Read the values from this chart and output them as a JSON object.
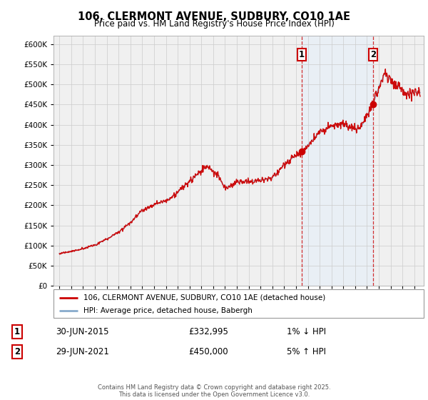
{
  "title_line1": "106, CLERMONT AVENUE, SUDBURY, CO10 1AE",
  "title_line2": "Price paid vs. HM Land Registry's House Price Index (HPI)",
  "legend_line1": "106, CLERMONT AVENUE, SUDBURY, CO10 1AE (detached house)",
  "legend_line2": "HPI: Average price, detached house, Babergh",
  "footer": "Contains HM Land Registry data © Crown copyright and database right 2025.\nThis data is licensed under the Open Government Licence v3.0.",
  "sale1_date": "30-JUN-2015",
  "sale1_price": "£332,995",
  "sale1_hpi": "1% ↓ HPI",
  "sale2_date": "29-JUN-2021",
  "sale2_price": "£450,000",
  "sale2_hpi": "5% ↑ HPI",
  "red_color": "#cc0000",
  "blue_color": "#88aacc",
  "shade_color": "#ddeeff",
  "grid_color": "#cccccc",
  "bg_color": "#ffffff",
  "plot_bg_color": "#f0f0f0",
  "ylim": [
    0,
    620000
  ],
  "yticks": [
    0,
    50000,
    100000,
    150000,
    200000,
    250000,
    300000,
    350000,
    400000,
    450000,
    500000,
    550000,
    600000
  ],
  "sale1_x": 2015.5,
  "sale1_y": 332995,
  "sale2_x": 2021.5,
  "sale2_y": 450000,
  "xmin": 1994.5,
  "xmax": 2025.8
}
